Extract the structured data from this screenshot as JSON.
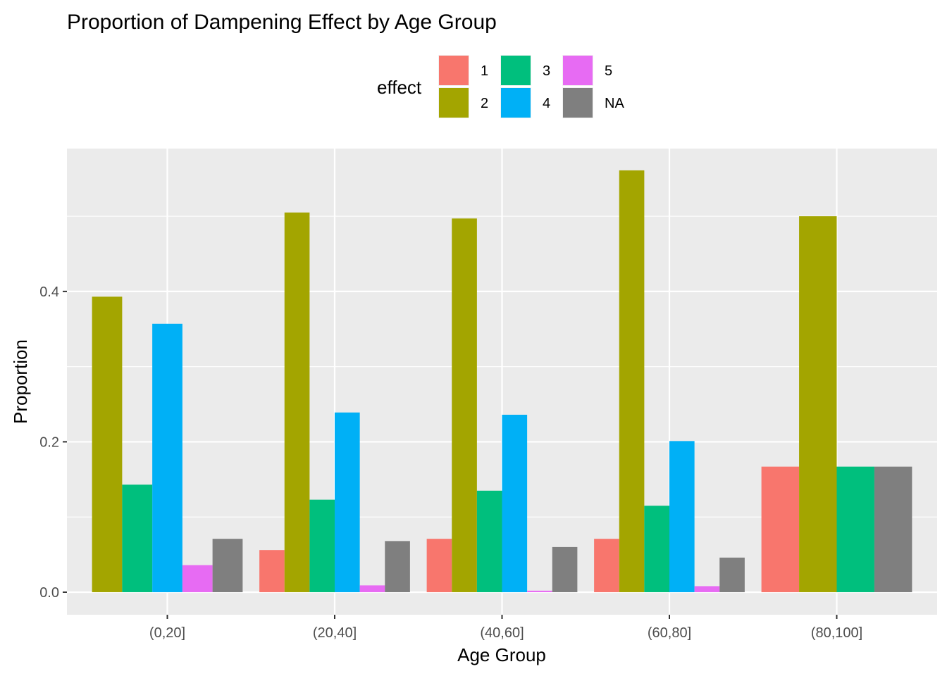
{
  "chart_data": {
    "type": "bar",
    "title": "Proportion of Dampening Effect by Age Group",
    "xlabel": "Age Group",
    "ylabel": "Proportion",
    "categories": [
      "(0,20]",
      "(20,40]",
      "(40,60]",
      "(60,80]",
      "(80,100]"
    ],
    "ylim": [
      -0.03,
      0.59
    ],
    "yticks": [
      0.0,
      0.2,
      0.4
    ],
    "ytick_labels": [
      "0.0",
      "0.2",
      "0.4"
    ],
    "grid": true,
    "background": "#EBEBEB",
    "legend": {
      "title": "effect",
      "placement": "top",
      "layout": [
        [
          "1",
          "3",
          "5"
        ],
        [
          "2",
          "4",
          "NA"
        ]
      ]
    },
    "series": [
      {
        "name": "1",
        "color": "#F8766D",
        "values": [
          null,
          0.056,
          0.071,
          0.071,
          0.167
        ]
      },
      {
        "name": "2",
        "color": "#A3A500",
        "values": [
          0.393,
          0.505,
          0.497,
          0.561,
          0.5
        ]
      },
      {
        "name": "3",
        "color": "#00BF7D",
        "values": [
          0.143,
          0.123,
          0.135,
          0.115,
          0.167
        ]
      },
      {
        "name": "4",
        "color": "#00B0F6",
        "values": [
          0.357,
          0.239,
          0.236,
          0.201,
          null
        ]
      },
      {
        "name": "5",
        "color": "#E76BF3",
        "values": [
          0.036,
          0.009,
          0.002,
          0.008,
          null
        ]
      },
      {
        "name": "NA",
        "color": "#7F7F7F",
        "values": [
          0.071,
          0.068,
          0.06,
          0.046,
          0.167
        ]
      }
    ]
  }
}
